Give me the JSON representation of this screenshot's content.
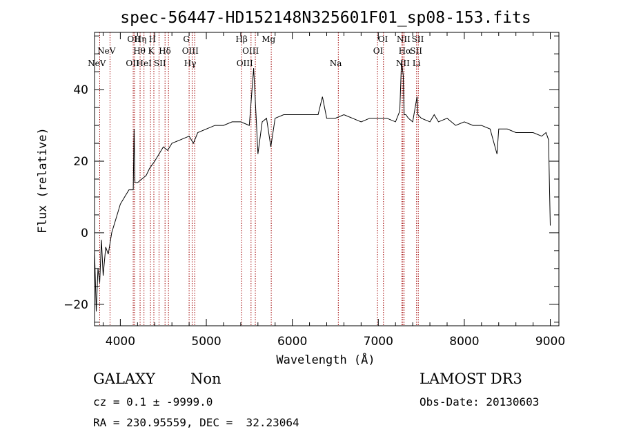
{
  "chart_data": {
    "type": "line",
    "title": "spec-56447-HD152148N325601F01_sp08-153.fits",
    "xlabel": "Wavelength (Å)",
    "ylabel": "Flux (relative)",
    "xlim": [
      3700,
      9100
    ],
    "ylim": [
      -26,
      56
    ],
    "x_ticks": [
      4000,
      5000,
      6000,
      7000,
      8000,
      9000
    ],
    "y_ticks": [
      -20,
      0,
      20,
      40
    ],
    "x_minor_step": 200,
    "y_minor_step": 5,
    "series": [
      {
        "name": "spectrum",
        "x": [
          3700,
          3720,
          3740,
          3760,
          3780,
          3800,
          3830,
          3860,
          3900,
          3950,
          4000,
          4050,
          4100,
          4150,
          4160,
          4170,
          4200,
          4250,
          4300,
          4340,
          4400,
          4450,
          4500,
          4550,
          4600,
          4700,
          4800,
          4850,
          4900,
          5000,
          5100,
          5200,
          5300,
          5400,
          5500,
          5550,
          5580,
          5600,
          5650,
          5700,
          5750,
          5800,
          5900,
          6000,
          6100,
          6200,
          6300,
          6350,
          6400,
          6500,
          6600,
          6700,
          6800,
          6900,
          7000,
          7100,
          7200,
          7250,
          7270,
          7290,
          7300,
          7320,
          7350,
          7400,
          7450,
          7460,
          7500,
          7600,
          7650,
          7700,
          7800,
          7900,
          8000,
          8100,
          8200,
          8300,
          8380,
          8400,
          8420,
          8500,
          8600,
          8700,
          8800,
          8900,
          8950,
          8980,
          9000
        ],
        "y": [
          -5,
          -22,
          -10,
          -14,
          -2,
          -12,
          -4,
          -6,
          0,
          4,
          8,
          10,
          12,
          12,
          29,
          14,
          14,
          15,
          16,
          18,
          20,
          22,
          24,
          23,
          25,
          26,
          27,
          25,
          28,
          29,
          30,
          30,
          31,
          31,
          30,
          46,
          32,
          22,
          31,
          32,
          24,
          32,
          33,
          33,
          33,
          33,
          33,
          38,
          32,
          32,
          33,
          32,
          31,
          32,
          32,
          32,
          31,
          34,
          48,
          44,
          33,
          33,
          32,
          31,
          38,
          33,
          32,
          31,
          33,
          31,
          32,
          30,
          31,
          30,
          30,
          29,
          22,
          29,
          29,
          29,
          28,
          28,
          28,
          27,
          28,
          26,
          2
        ]
      }
    ],
    "lines": [
      {
        "label": "NeV",
        "wavelength": 3726,
        "row": 2
      },
      {
        "label": "NeV",
        "wavelength": 3839,
        "row": 1
      },
      {
        "label": "OII",
        "wavelength": 4158,
        "row": 0
      },
      {
        "label": "Hη",
        "wavelength": 4234,
        "row": 0
      },
      {
        "label": "H",
        "wavelength": 4373,
        "row": 0
      },
      {
        "label": "Hθ",
        "wavelength": 4222,
        "row": 1
      },
      {
        "label": "K",
        "wavelength": 4358,
        "row": 1
      },
      {
        "label": "Hδ",
        "wavelength": 4518,
        "row": 1
      },
      {
        "label": "OII",
        "wavelength": 4142,
        "row": 2
      },
      {
        "label": "HeI",
        "wavelength": 4275,
        "row": 2
      },
      {
        "label": "SII",
        "wavelength": 4460,
        "row": 2
      },
      {
        "label": "G",
        "wavelength": 4769,
        "row": 0
      },
      {
        "label": "OIII",
        "wavelength": 4814,
        "row": 1
      },
      {
        "label": "Hγ",
        "wavelength": 4812,
        "row": 2
      },
      {
        "label": "Hβ",
        "wavelength": 5410,
        "row": 0
      },
      {
        "label": "OIII",
        "wavelength": 5515,
        "row": 1
      },
      {
        "label": "OIII",
        "wavelength": 5447,
        "row": 2
      },
      {
        "label": "Mg",
        "wavelength": 5724,
        "row": 0
      },
      {
        "label": "Na",
        "wavelength": 6505,
        "row": 2
      },
      {
        "label": "OI",
        "wavelength": 7054,
        "row": 0
      },
      {
        "label": "OI",
        "wavelength": 6998,
        "row": 1
      },
      {
        "label": "NII",
        "wavelength": 7294,
        "row": 0
      },
      {
        "label": "SII",
        "wavelength": 7459,
        "row": 0
      },
      {
        "label": "Hα",
        "wavelength": 7310,
        "row": 1
      },
      {
        "label": "SII",
        "wavelength": 7440,
        "row": 1
      },
      {
        "label": "NII",
        "wavelength": 7286,
        "row": 2
      },
      {
        "label": "Li",
        "wavelength": 7444,
        "row": 2
      }
    ],
    "marker_lines": [
      3760,
      3880,
      4150,
      4165,
      4230,
      4275,
      4350,
      4390,
      4450,
      4520,
      4560,
      4800,
      4835,
      4865,
      5410,
      5520,
      5570,
      5755,
      6535,
      6990,
      7060,
      7275,
      7285,
      7300,
      7445,
      7465
    ]
  },
  "info": {
    "class_label": "GALAXY",
    "subclass_label": "Non",
    "survey": "LAMOST DR3",
    "cz_line": "cz = 0.1 ± -9999.0",
    "obs_date_line": "Obs-Date: 20130603",
    "coords_line": "RA = 230.95559, DEC =  32.23064"
  }
}
